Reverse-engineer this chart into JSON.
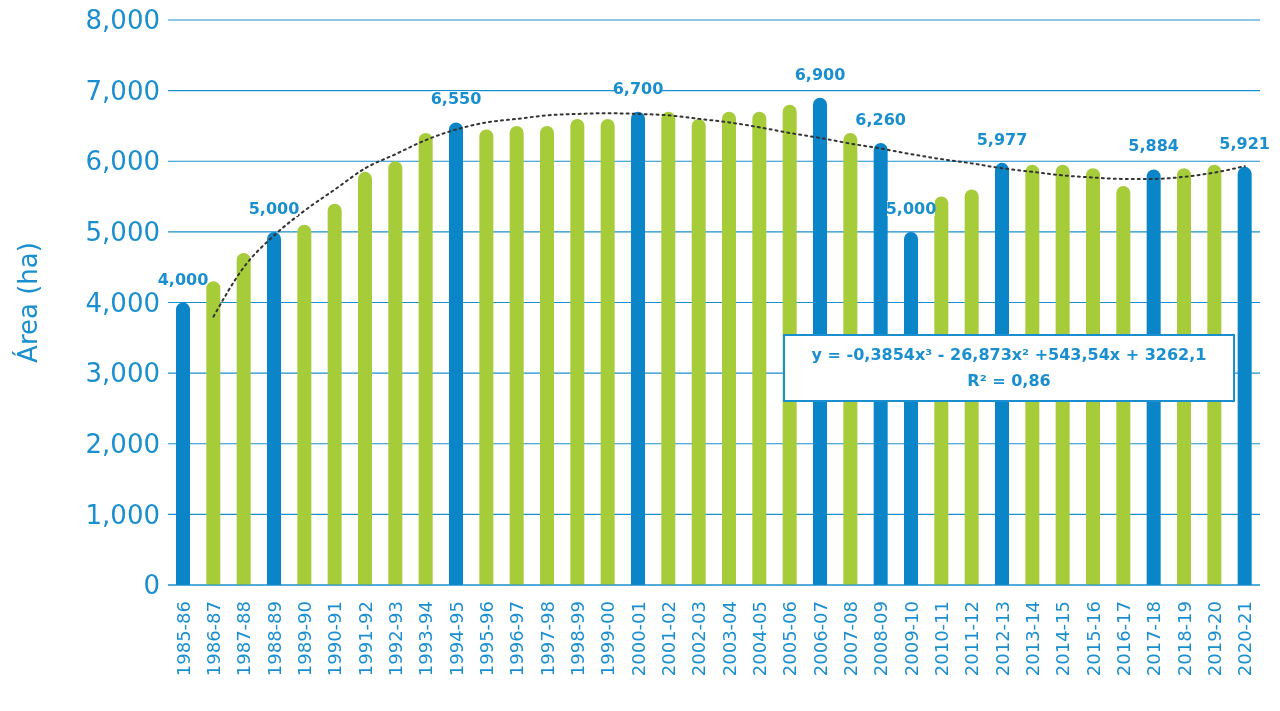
{
  "chart_data": {
    "type": "bar",
    "ylabel": "Área (ha)",
    "categories": [
      "1985-86",
      "1986-87",
      "1987-88",
      "1988-89",
      "1989-90",
      "1990-91",
      "1991-92",
      "1992-93",
      "1993-94",
      "1994-95",
      "1995-96",
      "1996-97",
      "1997-98",
      "1998-99",
      "1999-00",
      "2000-01",
      "2001-02",
      "2002-03",
      "2003-04",
      "2004-05",
      "2005-06",
      "2006-07",
      "2007-08",
      "2008-09",
      "2009-10",
      "2010-11",
      "2011-12",
      "2012-13",
      "2013-14",
      "2014-15",
      "2015-16",
      "2016-17",
      "2017-18",
      "2018-19",
      "2019-20",
      "2020-21"
    ],
    "series": [
      {
        "values": [
          4000,
          4300,
          4700,
          5000,
          5100,
          5400,
          5850,
          6000,
          6400,
          6550,
          6450,
          6500,
          6500,
          6600,
          6600,
          6700,
          6700,
          6600,
          6700,
          6700,
          6800,
          6900,
          6400,
          6260,
          5000,
          5500,
          5600,
          5977,
          5950,
          5950,
          5900,
          5650,
          5884,
          5900,
          5950,
          5921
        ],
        "colors": [
          "#0a85c8",
          "#a6cc3a",
          "#a6cc3a",
          "#0a85c8",
          "#a6cc3a",
          "#a6cc3a",
          "#a6cc3a",
          "#a6cc3a",
          "#a6cc3a",
          "#0a85c8",
          "#a6cc3a",
          "#a6cc3a",
          "#a6cc3a",
          "#a6cc3a",
          "#a6cc3a",
          "#0a85c8",
          "#a6cc3a",
          "#a6cc3a",
          "#a6cc3a",
          "#a6cc3a",
          "#a6cc3a",
          "#0a85c8",
          "#a6cc3a",
          "#0a85c8",
          "#0a85c8",
          "#a6cc3a",
          "#a6cc3a",
          "#0a85c8",
          "#a6cc3a",
          "#a6cc3a",
          "#a6cc3a",
          "#a6cc3a",
          "#0a85c8",
          "#a6cc3a",
          "#a6cc3a",
          "#0a85c8"
        ],
        "value_labels": [
          "4,000",
          null,
          null,
          "5,000",
          null,
          null,
          null,
          null,
          null,
          "6,550",
          null,
          null,
          null,
          null,
          null,
          "6,700",
          null,
          null,
          null,
          null,
          null,
          "6,900",
          null,
          "6,260",
          "5,000",
          null,
          null,
          "5,977",
          null,
          null,
          null,
          null,
          "5,884",
          null,
          null,
          "5,921"
        ]
      },
      {
        "type": "line",
        "color": "#333333",
        "line_style": "dotted",
        "marker": "none",
        "values": [
          null,
          3800,
          4500,
          4950,
          5300,
          5600,
          5900,
          6100,
          6300,
          6450,
          6550,
          6600,
          6650,
          6670,
          6680,
          6670,
          6650,
          6600,
          6550,
          6480,
          6400,
          6330,
          6250,
          6180,
          6100,
          6030,
          5970,
          5900,
          5850,
          5800,
          5770,
          5750,
          5750,
          5780,
          5840,
          5930
        ]
      }
    ],
    "ylim": [
      0,
      8000
    ],
    "yticks": [
      {
        "value": 0,
        "label": "0"
      },
      {
        "value": 1000,
        "label": "1,000"
      },
      {
        "value": 2000,
        "label": "2,000"
      },
      {
        "value": 3000,
        "label": "3,000"
      },
      {
        "value": 4000,
        "label": "4,000"
      },
      {
        "value": 5000,
        "label": "5,000"
      },
      {
        "value": 6000,
        "label": "6,000"
      },
      {
        "value": 7000,
        "label": "7,000"
      },
      {
        "value": 8000,
        "label": "8,000"
      }
    ],
    "grid": "y",
    "legend": false,
    "annotations": [
      "y = -0,3854x³ - 26,873x² +543,54x + 3262,1",
      "R² = 0,86"
    ]
  }
}
